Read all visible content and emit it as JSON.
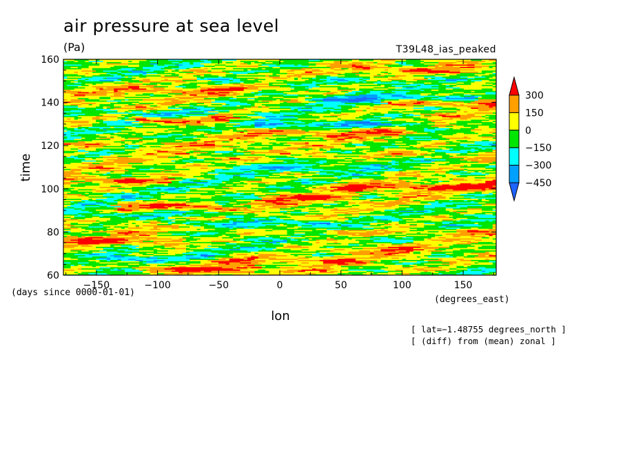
{
  "chart_data": {
    "type": "heatmap",
    "title": "air pressure at sea level",
    "units": "(Pa)",
    "run_label": "T39L48_ias_peaked",
    "xlabel": "lon",
    "ylabel": "time",
    "x_units": "(degrees_east)",
    "y_units": "(days since 0000-01-01)",
    "xlim": [
      -177,
      177
    ],
    "ylim": [
      60,
      160
    ],
    "x_ticks": [
      -150,
      -100,
      -50,
      0,
      50,
      100,
      150
    ],
    "x_tick_labels": [
      "−150",
      "−100",
      "−50",
      "0",
      "50",
      "100",
      "150"
    ],
    "y_ticks": [
      60,
      80,
      100,
      120,
      140,
      160
    ],
    "y_tick_labels": [
      "60",
      "80",
      "100",
      "120",
      "140",
      "160"
    ],
    "colorbar": {
      "levels": [
        -450,
        -300,
        -150,
        0,
        150,
        300
      ],
      "level_labels": [
        "−450",
        "−300",
        "−150",
        "0",
        "150",
        "300"
      ],
      "colors": [
        "#1e64ff",
        "#00a0ff",
        "#00ffff",
        "#00e600",
        "#ffff00",
        "#ffa000",
        "#ff0000"
      ],
      "extend": "both"
    },
    "bands": [
      {
        "t": 63,
        "lon_start": -120,
        "lon_end": -20,
        "value": 320
      },
      {
        "t": 67,
        "lon_start": -100,
        "lon_end": 60,
        "value": 200
      },
      {
        "t": 68,
        "lon_start": -150,
        "lon_end": -60,
        "value": -250
      },
      {
        "t": 72,
        "lon_start": 40,
        "lon_end": 110,
        "value": 220
      },
      {
        "t": 76,
        "lon_start": -177,
        "lon_end": -80,
        "value": 250
      },
      {
        "t": 80,
        "lon_start": 0,
        "lon_end": 177,
        "value": 170
      },
      {
        "t": 84,
        "lon_start": -100,
        "lon_end": 40,
        "value": -250
      },
      {
        "t": 88,
        "lon_start": -170,
        "lon_end": -20,
        "value": -200
      },
      {
        "t": 92,
        "lon_start": -140,
        "lon_end": -50,
        "value": 320
      },
      {
        "t": 96,
        "lon_start": -20,
        "lon_end": 60,
        "value": 250
      },
      {
        "t": 101,
        "lon_start": 40,
        "lon_end": 177,
        "value": 280
      },
      {
        "t": 104,
        "lon_start": -177,
        "lon_end": -90,
        "value": 220
      },
      {
        "t": 110,
        "lon_start": -60,
        "lon_end": 80,
        "value": -170
      },
      {
        "t": 116,
        "lon_start": 20,
        "lon_end": 177,
        "value": 160
      },
      {
        "t": 121,
        "lon_start": -177,
        "lon_end": -60,
        "value": 170
      },
      {
        "t": 126,
        "lon_start": -80,
        "lon_end": 100,
        "value": 180
      },
      {
        "t": 130,
        "lon_start": -20,
        "lon_end": 120,
        "value": -320
      },
      {
        "t": 132,
        "lon_start": -120,
        "lon_end": -40,
        "value": 310
      },
      {
        "t": 135,
        "lon_start": -177,
        "lon_end": -60,
        "value": -200
      },
      {
        "t": 140,
        "lon_start": 80,
        "lon_end": 177,
        "value": 310
      },
      {
        "t": 142,
        "lon_start": 20,
        "lon_end": 160,
        "value": -260
      },
      {
        "t": 146,
        "lon_start": -177,
        "lon_end": -30,
        "value": 180
      },
      {
        "t": 150,
        "lon_start": -60,
        "lon_end": 100,
        "value": -170
      },
      {
        "t": 155,
        "lon_start": 60,
        "lon_end": 177,
        "value": 230
      }
    ]
  },
  "notes": {
    "lat": "[ lat=−1.48755 degrees_north ]",
    "diff": "[ (diff) from (mean) zonal ]"
  }
}
